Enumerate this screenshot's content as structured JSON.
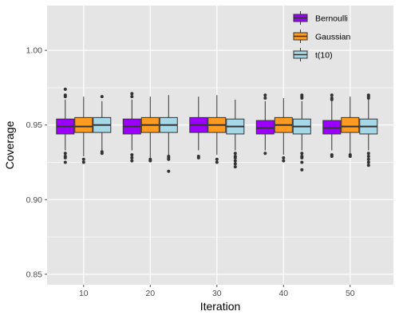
{
  "chart_data": {
    "type": "boxplot",
    "title": "",
    "xlabel": "Iteration",
    "ylabel": "Coverage",
    "ylim": [
      0.843,
      1.03
    ],
    "y_ticks": [
      0.85,
      0.9,
      0.95,
      1.0
    ],
    "y_tick_labels": [
      "0.85",
      "0.90",
      "0.95",
      "1.00"
    ],
    "categories": [
      "10",
      "20",
      "30",
      "40",
      "50"
    ],
    "grid": true,
    "legend_position": "top-right",
    "series": [
      {
        "name": "Bernoulli",
        "color": "#9b00ff",
        "boxes": [
          {
            "category": "10",
            "q1": 0.944,
            "median": 0.949,
            "q3": 0.954,
            "whisker_low": 0.933,
            "whisker_high": 0.967,
            "outliers": [
              0.974,
              0.97,
              0.969,
              0.931,
              0.929,
              0.928,
              0.925
            ]
          },
          {
            "category": "20",
            "q1": 0.944,
            "median": 0.949,
            "q3": 0.954,
            "whisker_low": 0.933,
            "whisker_high": 0.967,
            "outliers": [
              0.971,
              0.969,
              0.93,
              0.928,
              0.926
            ]
          },
          {
            "category": "30",
            "q1": 0.945,
            "median": 0.95,
            "q3": 0.955,
            "whisker_low": 0.933,
            "whisker_high": 0.969,
            "outliers": [
              0.929,
              0.928
            ]
          },
          {
            "category": "40",
            "q1": 0.944,
            "median": 0.948,
            "q3": 0.953,
            "whisker_low": 0.933,
            "whisker_high": 0.966,
            "outliers": [
              0.97,
              0.968,
              0.931
            ]
          },
          {
            "category": "50",
            "q1": 0.944,
            "median": 0.948,
            "q3": 0.953,
            "whisker_low": 0.933,
            "whisker_high": 0.966,
            "outliers": [
              0.97,
              0.968,
              0.967,
              0.93,
              0.929
            ]
          }
        ]
      },
      {
        "name": "Gaussian",
        "color": "#ff9b20",
        "boxes": [
          {
            "category": "10",
            "q1": 0.945,
            "median": 0.949,
            "q3": 0.955,
            "whisker_low": 0.929,
            "whisker_high": 0.969,
            "outliers": [
              0.927,
              0.925
            ]
          },
          {
            "category": "20",
            "q1": 0.945,
            "median": 0.95,
            "q3": 0.955,
            "whisker_low": 0.928,
            "whisker_high": 0.969,
            "outliers": [
              0.927,
              0.926
            ]
          },
          {
            "category": "30",
            "q1": 0.945,
            "median": 0.95,
            "q3": 0.955,
            "whisker_low": 0.93,
            "whisker_high": 0.97,
            "outliers": [
              0.927,
              0.925
            ]
          },
          {
            "category": "40",
            "q1": 0.945,
            "median": 0.95,
            "q3": 0.955,
            "whisker_low": 0.93,
            "whisker_high": 0.968,
            "outliers": [
              0.928,
              0.926
            ]
          },
          {
            "category": "50",
            "q1": 0.945,
            "median": 0.949,
            "q3": 0.955,
            "whisker_low": 0.931,
            "whisker_high": 0.969,
            "outliers": [
              0.93,
              0.929
            ]
          }
        ]
      },
      {
        "name": "t(10)",
        "color": "#a6d8e8",
        "boxes": [
          {
            "category": "10",
            "q1": 0.945,
            "median": 0.95,
            "q3": 0.955,
            "whisker_low": 0.933,
            "whisker_high": 0.966,
            "outliers": [
              0.969,
              0.932,
              0.931
            ]
          },
          {
            "category": "20",
            "q1": 0.945,
            "median": 0.95,
            "q3": 0.955,
            "whisker_low": 0.93,
            "whisker_high": 0.97,
            "outliers": [
              0.929,
              0.928,
              0.927,
              0.919
            ]
          },
          {
            "category": "30",
            "q1": 0.944,
            "median": 0.949,
            "q3": 0.954,
            "whisker_low": 0.933,
            "whisker_high": 0.967,
            "outliers": [
              0.931,
              0.929,
              0.928,
              0.926,
              0.924,
              0.922
            ]
          },
          {
            "category": "40",
            "q1": 0.944,
            "median": 0.949,
            "q3": 0.954,
            "whisker_low": 0.933,
            "whisker_high": 0.966,
            "outliers": [
              0.97,
              0.969,
              0.968,
              0.931,
              0.929,
              0.928,
              0.925,
              0.92
            ]
          },
          {
            "category": "50",
            "q1": 0.944,
            "median": 0.949,
            "q3": 0.954,
            "whisker_low": 0.933,
            "whisker_high": 0.967,
            "outliers": [
              0.97,
              0.969,
              0.968,
              0.931,
              0.929,
              0.927,
              0.925,
              0.923
            ]
          }
        ]
      }
    ]
  },
  "colors": {
    "panel_background": "#e5e5e5",
    "grid_major": "#ffffff",
    "box_outline": "#333333",
    "axis_text": "#4d4d4d",
    "title_text": "#000000"
  }
}
